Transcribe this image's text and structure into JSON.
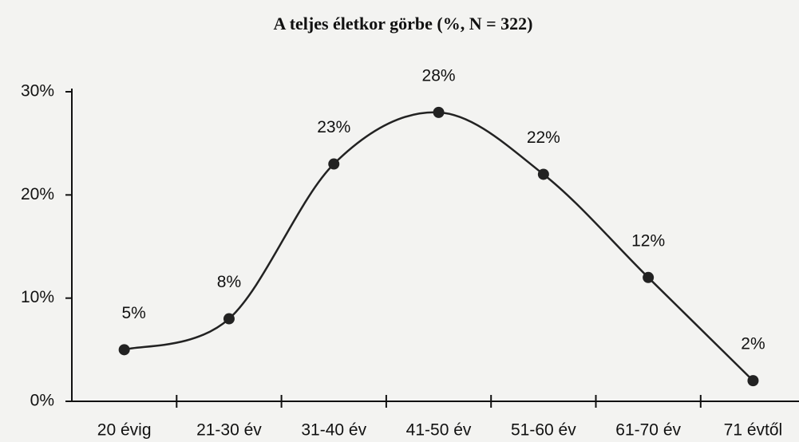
{
  "chart_data": {
    "type": "line",
    "title": "A teljes életkor görbe (%, N = 322)",
    "categories": [
      "20 évig",
      "21-30 év",
      "31-40 év",
      "41-50 év",
      "51-60 év",
      "61-70 év",
      "71 évtől"
    ],
    "values": [
      5,
      8,
      23,
      28,
      22,
      12,
      2
    ],
    "value_labels": [
      "5%",
      "8%",
      "23%",
      "28%",
      "22%",
      "12%",
      "2%"
    ],
    "color": "#222222",
    "ylim": [
      0,
      30
    ],
    "yticks": [
      {
        "value": 0,
        "label": "0%"
      },
      {
        "value": 10,
        "label": "10%"
      },
      {
        "value": 20,
        "label": "20%"
      },
      {
        "value": 30,
        "label": "30%"
      }
    ],
    "grid": false,
    "smooth": true
  }
}
